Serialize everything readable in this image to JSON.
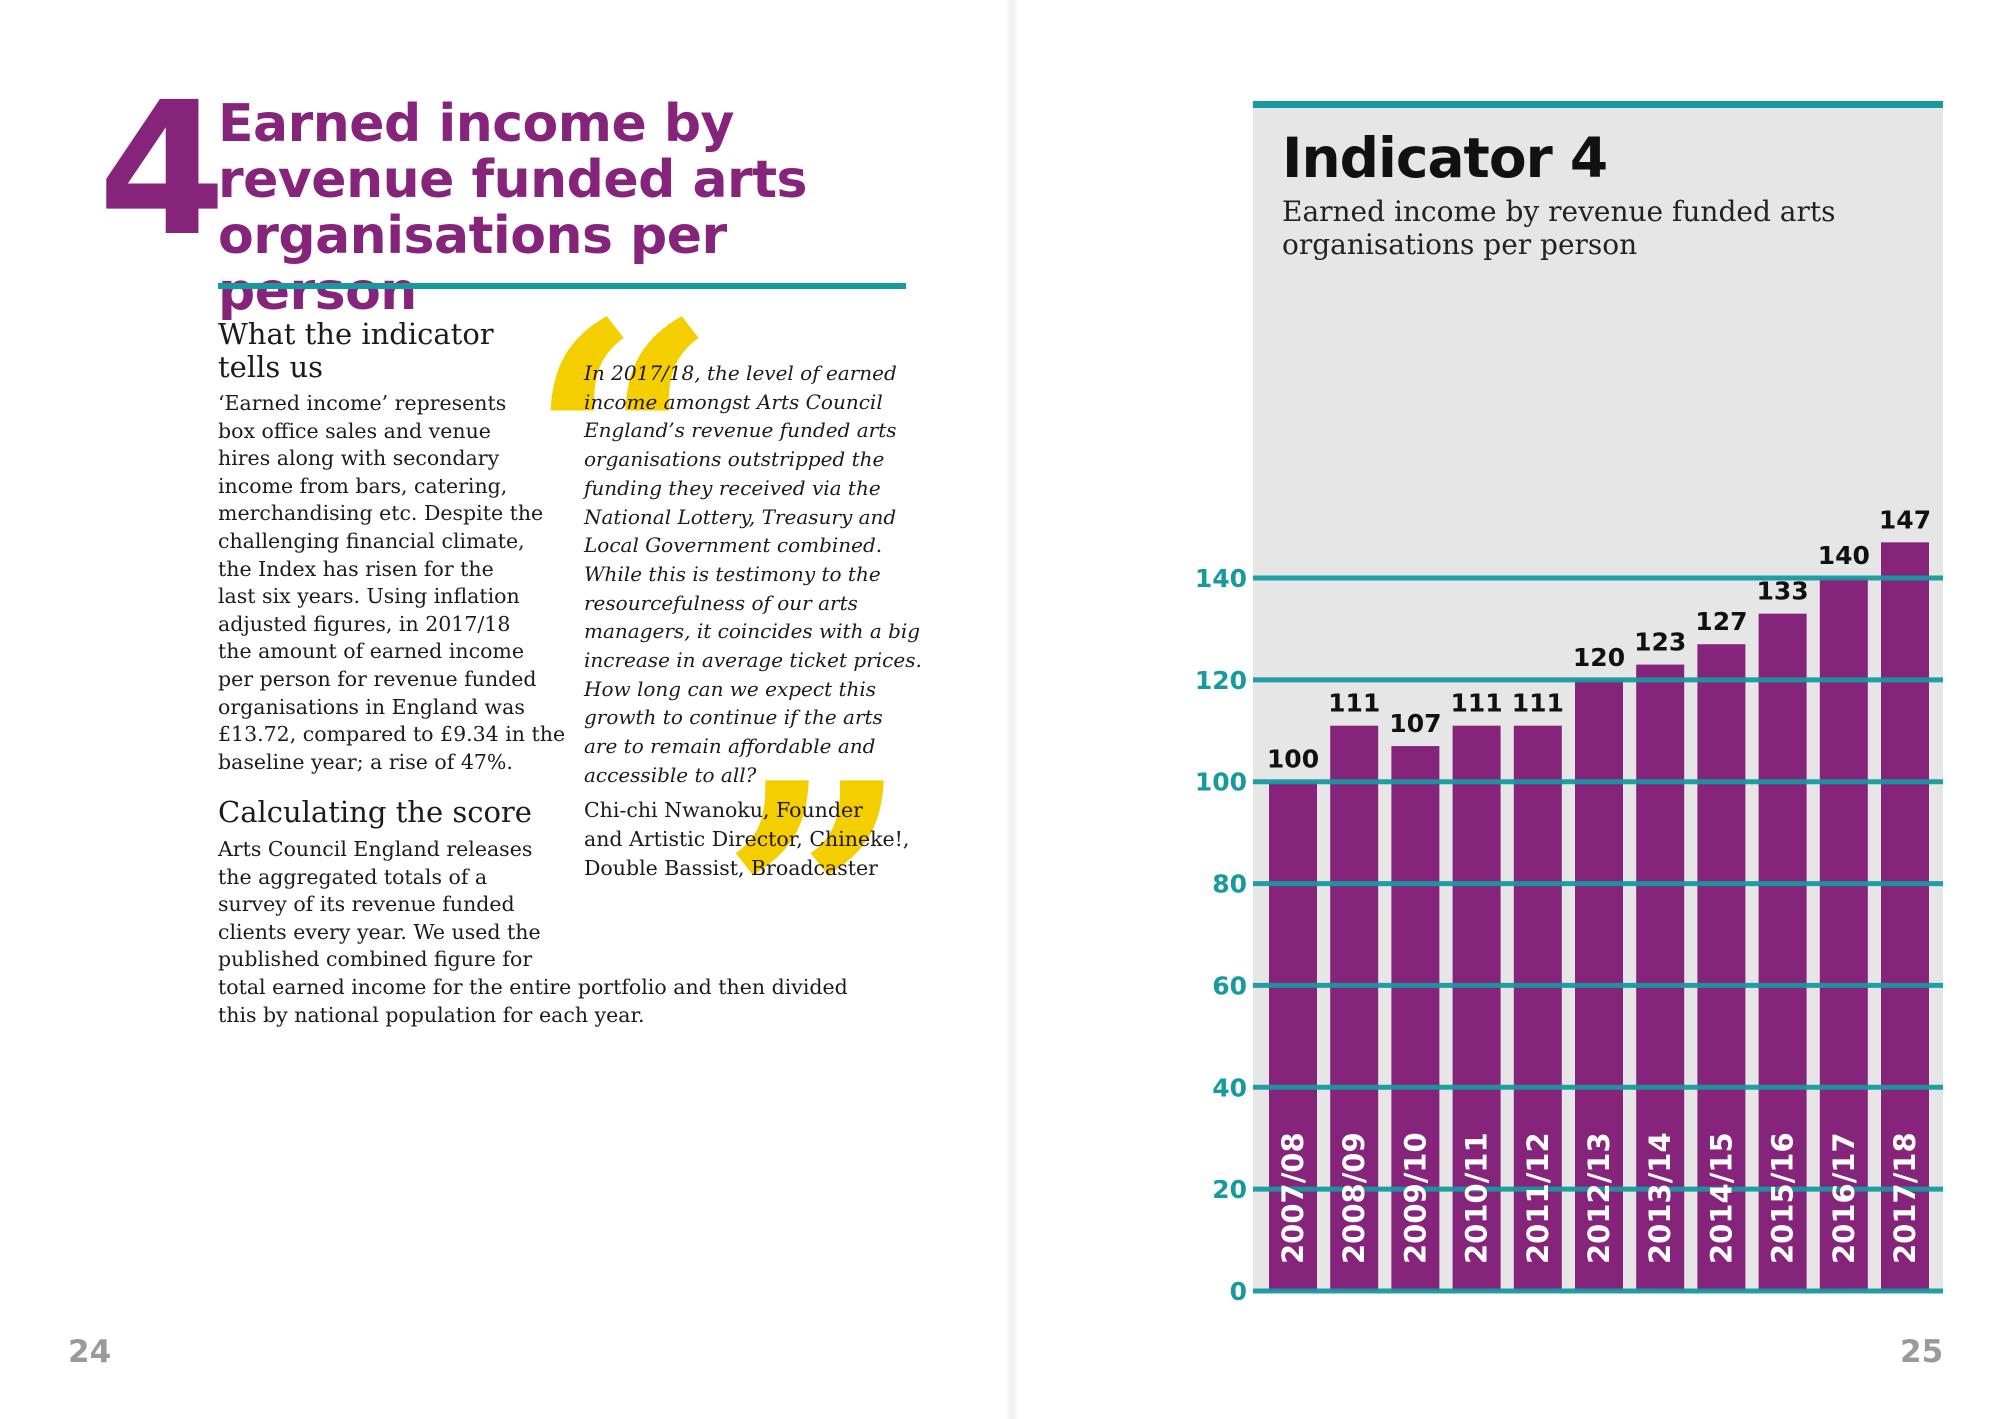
{
  "left_page": {
    "section_number": "4",
    "title_lines": [
      "Earned income by",
      "revenue funded arts",
      "organisations per person"
    ],
    "heading1_lines": [
      "What the indicator",
      "tells us"
    ],
    "paragraph1_lines": [
      "‘Earned income’ represents",
      "box office sales and venue",
      "hires along with secondary",
      "income from bars, catering,",
      "merchandising etc. Despite the",
      "challenging financial climate,",
      "the Index has risen for the",
      "last six years. Using inflation",
      "adjusted figures, in 2017/18",
      "the amount of earned income",
      "per person for revenue funded",
      "organisations in England was",
      "£13.72, compared to £9.34 in the",
      "baseline year; a rise of 47%."
    ],
    "heading2": "Calculating the score",
    "paragraph2_lines": [
      "Arts Council England releases",
      "the aggregated totals of a",
      "survey of its revenue funded",
      "clients every year. We used the",
      "published combined figure for",
      "total earned income for the entire portfolio and then divided",
      "this by national population for each year."
    ],
    "quote_lines": [
      "In 2017/18, the level of earned",
      "income amongst Arts Council",
      "England’s revenue funded arts",
      "organisations outstripped the",
      "funding they received via the",
      "National Lottery, Treasury and",
      "Local Government combined.",
      "While this is testimony to the",
      "resourcefulness of our arts",
      "managers, it coincides with a big",
      "increase in average ticket prices.",
      "How long can we expect this",
      "growth to continue if the arts",
      "are to remain affordable and",
      "accessible to all?"
    ],
    "attribution_lines": [
      "Chi-chi Nwanoku, Founder",
      "and Artistic Director, Chineke!,",
      "Double Bassist, Broadcaster"
    ],
    "page_number": "24"
  },
  "right_page": {
    "panel_title": "Indicator 4",
    "panel_subtitle_lines": [
      "Earned income by revenue funded arts",
      "organisations per person"
    ],
    "page_number": "25"
  },
  "colors": {
    "purple": "#86247b",
    "teal": "#1799a0",
    "yellow": "#f5ce00",
    "panel_grey": "#e6e6e6",
    "gridline": "#1799a0"
  },
  "chart_data": {
    "type": "bar",
    "categories": [
      "2007/08",
      "2008/09",
      "2009/10",
      "2010/11",
      "2011/12",
      "2012/13",
      "2013/14",
      "2014/15",
      "2015/16",
      "2016/17",
      "2017/18"
    ],
    "values": [
      100,
      111,
      107,
      111,
      111,
      120,
      123,
      127,
      133,
      140,
      147
    ],
    "data_labels": [
      "100",
      "111",
      "107",
      "111",
      "111",
      "120",
      "123",
      "127",
      "133",
      "140",
      "147"
    ],
    "title": "Indicator 4",
    "subtitle": "Earned income by revenue funded arts organisations per person",
    "y_ticks": [
      0,
      20,
      40,
      60,
      80,
      100,
      120,
      140
    ],
    "ylim": [
      0,
      140
    ],
    "grid": true,
    "legend": "none",
    "bar_color": "#86247b"
  }
}
